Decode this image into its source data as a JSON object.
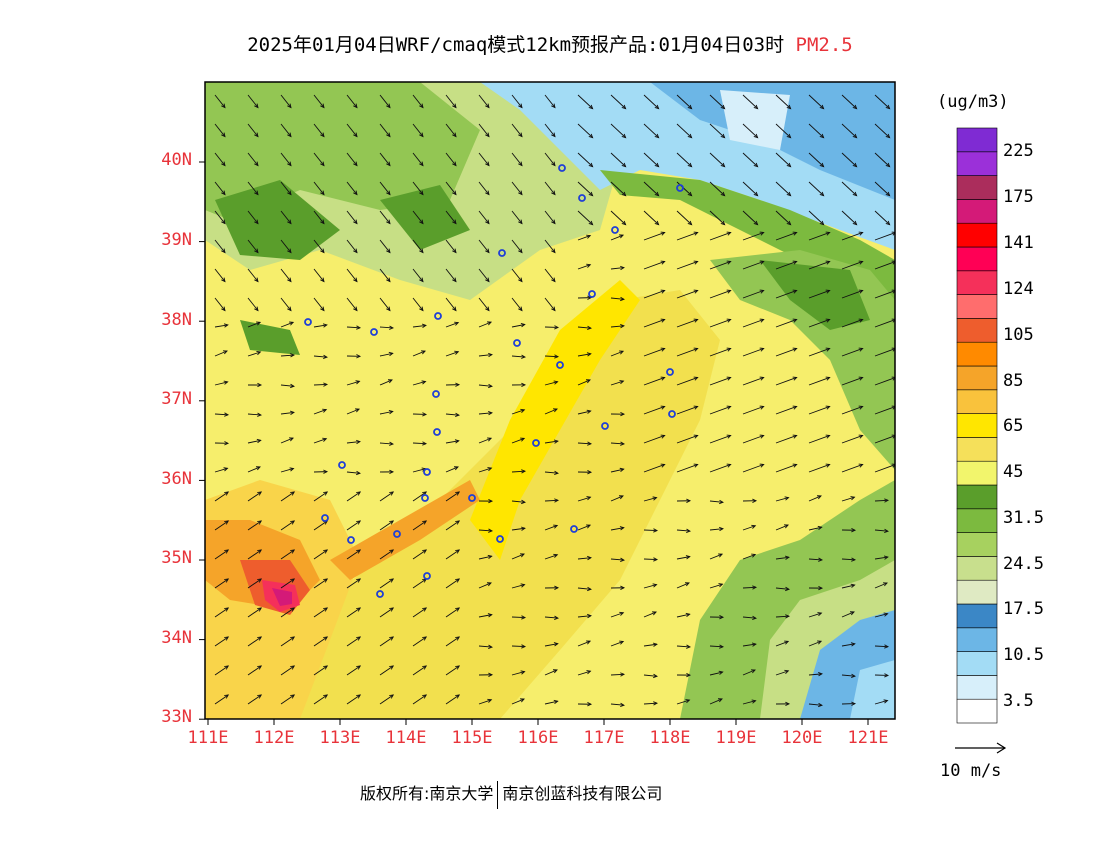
{
  "title": {
    "main": "2025年01月04日WRF/cmaq模式12km预报产品:01月04日03时",
    "variable": "PM2.5"
  },
  "axes": {
    "lat_labels": [
      "40N",
      "39N",
      "38N",
      "37N",
      "36N",
      "35N",
      "34N",
      "33N"
    ],
    "lon_labels": [
      "111E",
      "112E",
      "113E",
      "114E",
      "115E",
      "116E",
      "117E",
      "118E",
      "119E",
      "120E",
      "121E"
    ]
  },
  "colorbar": {
    "unit": "(ug/m3)",
    "colors": [
      "#ffffff",
      "#d7effa",
      "#a3dcf5",
      "#6cb6e6",
      "#3b87c6",
      "#dfeac3",
      "#c8df8d",
      "#a7d15f",
      "#7cba3f",
      "#5a9e2b",
      "#f2f56c",
      "#f5e05a",
      "#ffe600",
      "#f9c23c",
      "#f5a429",
      "#ff8a00",
      "#ee5d2d",
      "#ff6d6d",
      "#f5305a",
      "#ff0055",
      "#ff0000",
      "#d41a78",
      "#ab2d5c",
      "#9b30d9",
      "#7f2bd3"
    ],
    "labels": [
      "3.5",
      "10.5",
      "17.5",
      "24.5",
      "31.5",
      "45",
      "65",
      "85",
      "105",
      "124",
      "141",
      "175",
      "225"
    ]
  },
  "wind_legend": "10 m/s",
  "footer": {
    "left": "版权所有:南京大学",
    "right": "南京创蓝科技有限公司"
  },
  "map_palette": {
    "cream": "#f6ee6c",
    "yellow_dark": "#f2e04e",
    "yellow_bright": "#ffe600",
    "green_light": "#c7df85",
    "green_mid": "#93c653",
    "green_dark": "#5a9e2b",
    "blue_light": "#a3dcf5",
    "blue_mid": "#6cb6e6",
    "orange": "#f5a429",
    "red": "#f5305a",
    "magenta": "#d41a78"
  }
}
